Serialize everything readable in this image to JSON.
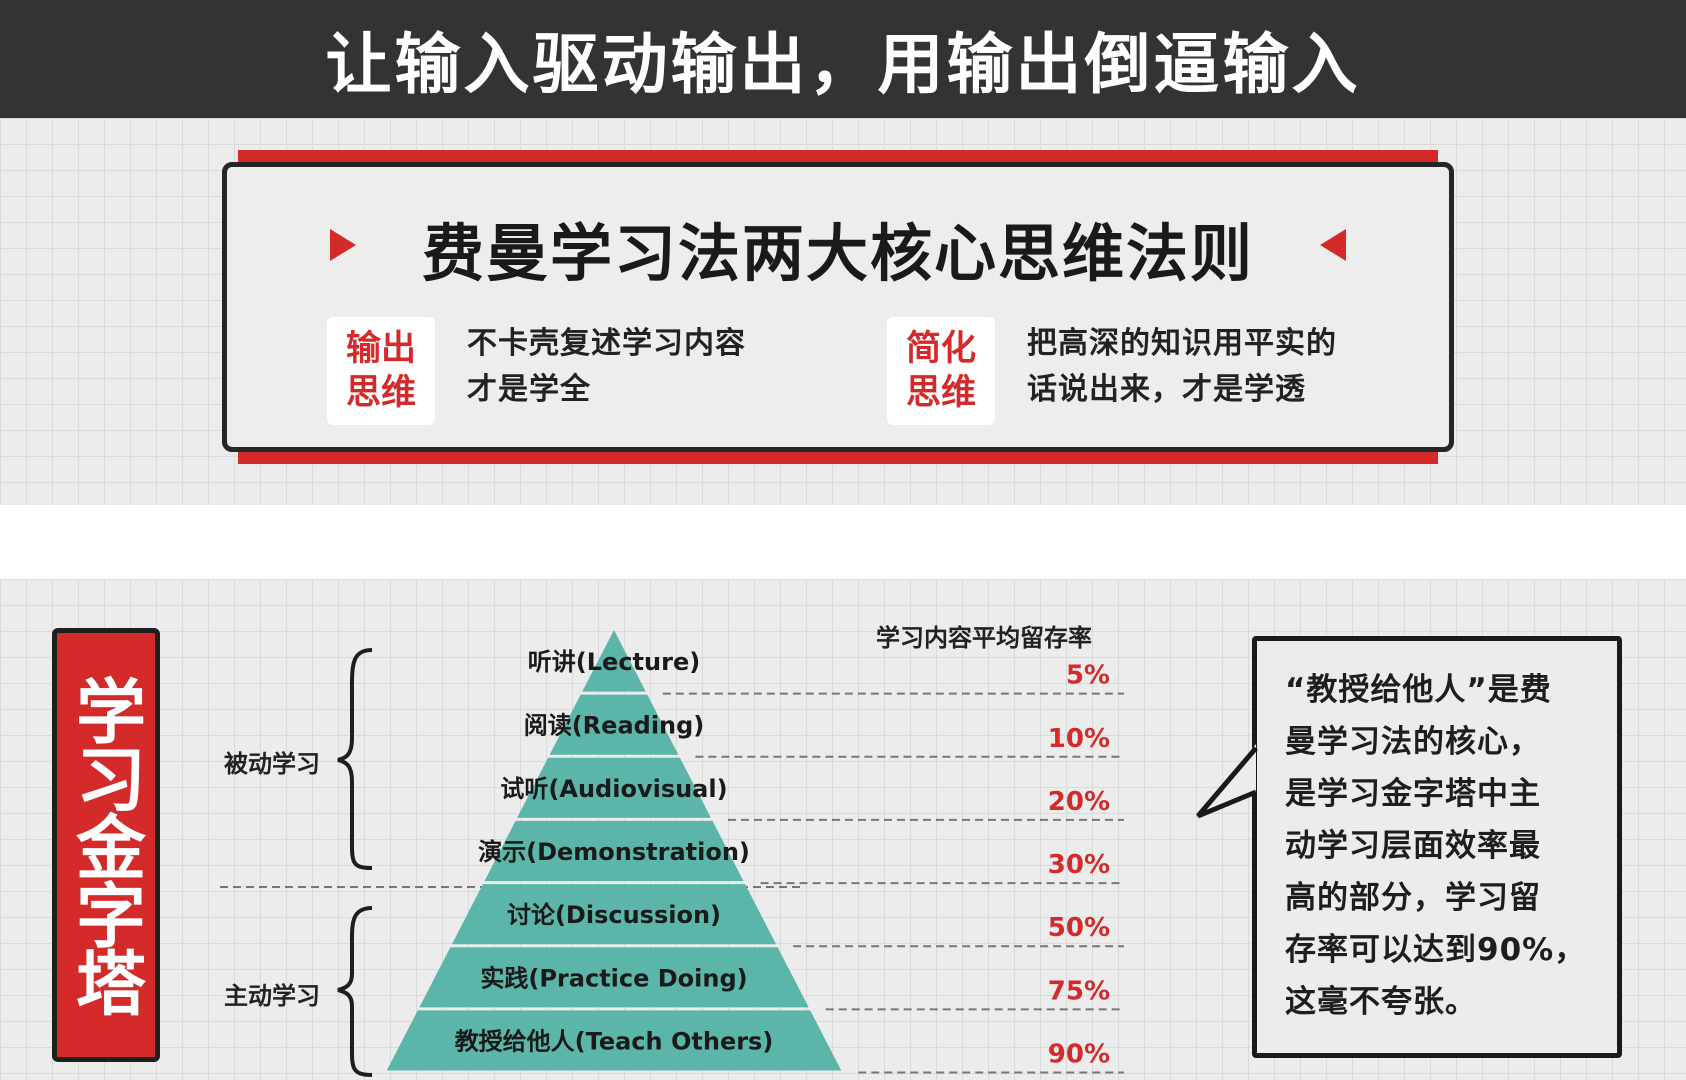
{
  "header": {
    "title": "让输入驱动输出，用输出倒逼输入"
  },
  "card": {
    "title": "费曼学习法两大核心思维法则",
    "principles": [
      {
        "badge_line1": "输出",
        "badge_line2": "思维",
        "desc_line1": "不卡壳复述学习内容",
        "desc_line2": "才是学全"
      },
      {
        "badge_line1": "简化",
        "badge_line2": "思维",
        "desc_line1": "把高深的知识用平实的",
        "desc_line2": "话说出来，才是学透"
      }
    ]
  },
  "pyramid": {
    "side_title": "学习金字塔",
    "retention_title": "学习内容平均留存率",
    "groups": [
      {
        "label": "被动学习"
      },
      {
        "label": "主动学习"
      }
    ],
    "levels": [
      {
        "label": "听讲(Lecture)",
        "rate": "5%"
      },
      {
        "label": "阅读(Reading)",
        "rate": "10%"
      },
      {
        "label": "试听(Audiovisual)",
        "rate": "20%"
      },
      {
        "label": "演示(Demonstration)",
        "rate": "30%"
      },
      {
        "label": "讨论(Discussion)",
        "rate": "50%"
      },
      {
        "label": "实践(Practice Doing)",
        "rate": "75%"
      },
      {
        "label": "教授给他人(Teach Others)",
        "rate": "90%"
      }
    ]
  },
  "callout": {
    "lines": [
      "“教授给他人”是费",
      "曼学习法的核心，",
      "是学习金字塔中主",
      "动学习层面效率最",
      "高的部分，学习留",
      "存率可以达到90%，",
      "这毫不夸张。"
    ]
  },
  "colors": {
    "accent_red": "#d42a2a",
    "pyramid_teal": "#5bb5a8",
    "dark_bar": "#333333"
  }
}
